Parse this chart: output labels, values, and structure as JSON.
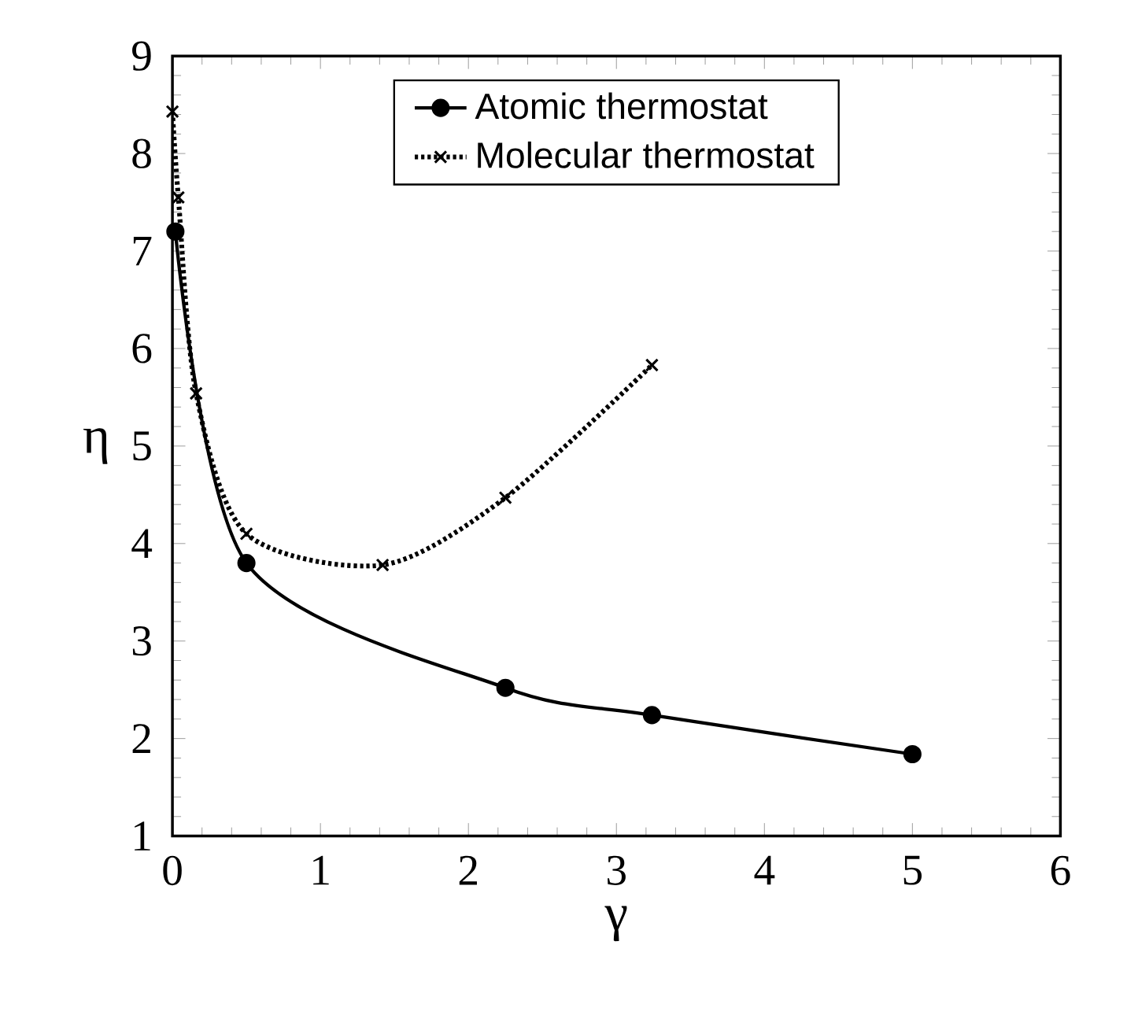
{
  "chart_data": {
    "type": "line",
    "xlabel": "γ",
    "ylabel": "η",
    "xlim": [
      0,
      6
    ],
    "ylim": [
      1,
      9
    ],
    "xticks": [
      0,
      1,
      2,
      3,
      4,
      5,
      6
    ],
    "yticks": [
      1,
      2,
      3,
      4,
      5,
      6,
      7,
      8,
      9
    ],
    "legend": "top",
    "series": [
      {
        "name": "Atomic thermostat",
        "color": "#000000",
        "marker": "circle",
        "line_style": "solid",
        "x": [
          0.02,
          0.5,
          2.25,
          3.24,
          5.0
        ],
        "values": [
          7.2,
          3.8,
          2.52,
          2.24,
          1.84
        ]
      },
      {
        "name": "Molecular thermostat",
        "color": "#000000",
        "marker": "cross",
        "line_style": "dotted",
        "x": [
          0.0,
          0.04,
          0.16,
          0.5,
          1.42,
          2.25,
          3.24
        ],
        "values": [
          8.43,
          7.55,
          5.54,
          4.1,
          3.78,
          4.47,
          5.83
        ]
      }
    ]
  }
}
